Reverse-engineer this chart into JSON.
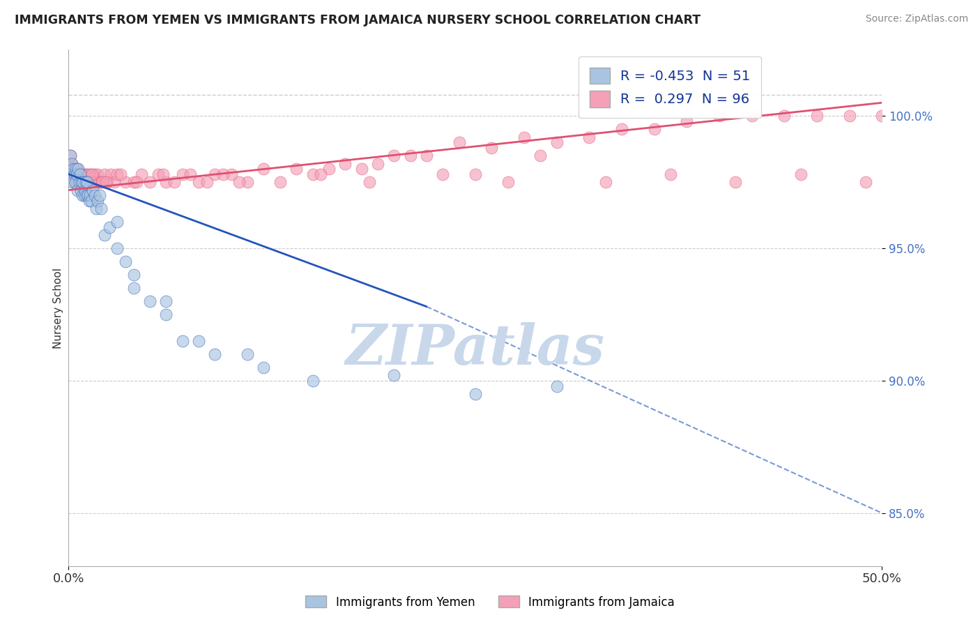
{
  "title": "IMMIGRANTS FROM YEMEN VS IMMIGRANTS FROM JAMAICA NURSERY SCHOOL CORRELATION CHART",
  "source": "Source: ZipAtlas.com",
  "ylabel": "Nursery School",
  "xlim": [
    0.0,
    50.0
  ],
  "ylim": [
    83.0,
    102.5
  ],
  "yticks": [
    85.0,
    90.0,
    95.0,
    100.0
  ],
  "ytick_labels": [
    "85.0%",
    "90.0%",
    "95.0%",
    "100.0%"
  ],
  "xtick_labels": [
    "0.0%",
    "50.0%"
  ],
  "legend_r_blue": "-0.453",
  "legend_n_blue": "51",
  "legend_r_pink": "0.297",
  "legend_n_pink": "96",
  "blue_color": "#a8c4e0",
  "pink_color": "#f4a0b8",
  "trend_blue_color": "#2255bb",
  "trend_pink_color": "#e05070",
  "grid_color": "#cccccc",
  "watermark": "ZIPatlas",
  "watermark_color": "#c8d8ea",
  "blue_label": "Immigrants from Yemen",
  "pink_label": "Immigrants from Jamaica",
  "blue_scatter_x": [
    0.1,
    0.15,
    0.2,
    0.25,
    0.3,
    0.35,
    0.4,
    0.45,
    0.5,
    0.55,
    0.6,
    0.65,
    0.7,
    0.75,
    0.8,
    0.85,
    0.9,
    0.95,
    1.0,
    1.05,
    1.1,
    1.15,
    1.2,
    1.25,
    1.3,
    1.4,
    1.5,
    1.6,
    1.7,
    1.8,
    1.9,
    2.0,
    2.2,
    2.5,
    3.0,
    3.5,
    4.0,
    5.0,
    6.0,
    7.0,
    9.0,
    12.0,
    15.0,
    20.0,
    25.0,
    30.0,
    3.0,
    8.0,
    4.0,
    6.0,
    11.0
  ],
  "blue_scatter_y": [
    98.5,
    97.8,
    98.2,
    97.5,
    98.0,
    97.8,
    97.5,
    98.0,
    97.8,
    97.2,
    98.0,
    97.5,
    97.8,
    97.2,
    97.5,
    97.0,
    97.5,
    97.0,
    97.2,
    97.5,
    97.0,
    97.5,
    97.0,
    96.8,
    97.0,
    96.8,
    97.2,
    97.0,
    96.5,
    96.8,
    97.0,
    96.5,
    95.5,
    95.8,
    95.0,
    94.5,
    93.5,
    93.0,
    92.5,
    91.5,
    91.0,
    90.5,
    90.0,
    90.2,
    89.5,
    89.8,
    96.0,
    91.5,
    94.0,
    93.0,
    91.0
  ],
  "pink_scatter_x": [
    0.1,
    0.15,
    0.2,
    0.25,
    0.3,
    0.35,
    0.4,
    0.45,
    0.5,
    0.55,
    0.6,
    0.65,
    0.7,
    0.75,
    0.8,
    0.85,
    0.9,
    0.95,
    1.0,
    1.05,
    1.1,
    1.15,
    1.2,
    1.3,
    1.4,
    1.5,
    1.6,
    1.7,
    1.8,
    1.9,
    2.0,
    2.2,
    2.4,
    2.6,
    2.8,
    3.0,
    3.5,
    4.0,
    4.5,
    5.0,
    5.5,
    6.0,
    7.0,
    8.0,
    9.0,
    10.0,
    11.0,
    12.0,
    13.0,
    14.0,
    15.0,
    16.0,
    17.0,
    18.0,
    20.0,
    22.0,
    24.0,
    26.0,
    28.0,
    30.0,
    32.0,
    34.0,
    36.0,
    38.0,
    40.0,
    42.0,
    44.0,
    46.0,
    48.0,
    50.0,
    1.25,
    1.35,
    1.45,
    2.1,
    2.3,
    3.2,
    6.5,
    7.5,
    8.5,
    9.5,
    19.0,
    21.0,
    25.0,
    29.0,
    33.0,
    37.0,
    41.0,
    45.0,
    49.0,
    4.2,
    5.8,
    10.5,
    15.5,
    18.5,
    23.0,
    27.0
  ],
  "pink_scatter_y": [
    98.5,
    98.0,
    98.2,
    97.8,
    98.0,
    97.5,
    98.0,
    97.8,
    97.5,
    98.0,
    97.5,
    97.8,
    97.5,
    97.8,
    97.5,
    97.8,
    97.5,
    97.8,
    97.5,
    97.8,
    97.5,
    97.8,
    97.5,
    97.5,
    97.8,
    97.5,
    97.8,
    97.5,
    97.8,
    97.5,
    97.5,
    97.8,
    97.5,
    97.8,
    97.5,
    97.8,
    97.5,
    97.5,
    97.8,
    97.5,
    97.8,
    97.5,
    97.8,
    97.5,
    97.8,
    97.8,
    97.5,
    98.0,
    97.5,
    98.0,
    97.8,
    98.0,
    98.2,
    98.0,
    98.5,
    98.5,
    99.0,
    98.8,
    99.2,
    99.0,
    99.2,
    99.5,
    99.5,
    99.8,
    100.0,
    100.0,
    100.0,
    100.0,
    100.0,
    100.0,
    97.8,
    97.5,
    97.8,
    97.5,
    97.5,
    97.8,
    97.5,
    97.8,
    97.5,
    97.8,
    98.2,
    98.5,
    97.8,
    98.5,
    97.5,
    97.8,
    97.5,
    97.8,
    97.5,
    97.5,
    97.8,
    97.5,
    97.8,
    97.5,
    97.8,
    97.5
  ],
  "trend_blue_x0": 0.0,
  "trend_blue_x1": 22.0,
  "trend_blue_y0": 97.8,
  "trend_blue_y1": 92.8,
  "trend_blue_dash_x0": 22.0,
  "trend_blue_dash_x1": 50.0,
  "trend_blue_dash_y0": 92.8,
  "trend_blue_dash_y1": 85.0,
  "trend_pink_x0": 0.0,
  "trend_pink_x1": 50.0,
  "trend_pink_y0": 97.2,
  "trend_pink_y1": 100.5,
  "dashed_top_y": 100.8
}
